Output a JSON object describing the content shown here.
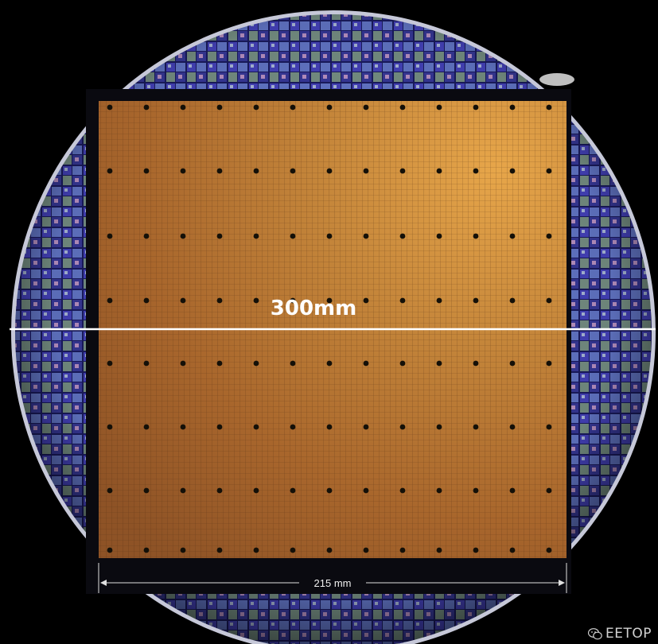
{
  "image": {
    "subject": "silicon-wafer-with-wafer-scale-chip",
    "colors": {
      "background": "#000000",
      "wafer_dies_blue": "#3a3aa8",
      "chip_copper": "#b9732f",
      "chip_copper_highlight": "#e0a14a",
      "frame": "#0a0a0f",
      "measure_line": "#ffffff"
    }
  },
  "annotations": {
    "wafer_diameter_label": "300mm",
    "chip_width_label": "215 mm"
  },
  "watermark": {
    "icon": "wechat-icon",
    "text": "EETOP"
  }
}
